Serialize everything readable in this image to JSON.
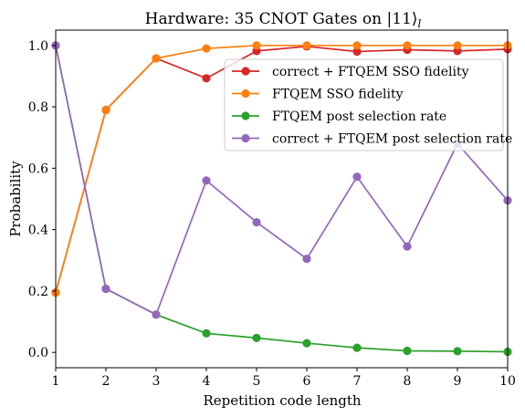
{
  "chart_data": {
    "type": "line",
    "title": "Hardware: 35 CNOT Gates on |11⟩",
    "title_subscript": "l",
    "xlabel": "Repetition code length",
    "ylabel": "Probability",
    "xlim": [
      1,
      10
    ],
    "ylim": [
      -0.05,
      1.05
    ],
    "x": [
      1,
      2,
      3,
      4,
      5,
      6,
      7,
      8,
      9,
      10
    ],
    "xticks": [
      "1",
      "2",
      "3",
      "4",
      "5",
      "6",
      "7",
      "8",
      "9",
      "10"
    ],
    "yticks": [
      "0.0",
      "0.2",
      "0.4",
      "0.6",
      "0.8",
      "1.0"
    ],
    "ytick_values": [
      0.0,
      0.2,
      0.4,
      0.6,
      0.8,
      1.0
    ],
    "grid": false,
    "legend_position": "upper-right",
    "series": [
      {
        "name": "correct + FTQEM SSO fidelity",
        "color": "#d62728",
        "values": [
          0.195,
          0.79,
          0.958,
          0.893,
          0.982,
          0.997,
          0.98,
          0.986,
          0.982,
          0.988
        ]
      },
      {
        "name": "FTQEM SSO fidelity",
        "color": "#ff7f0e",
        "values": [
          0.195,
          0.79,
          0.958,
          0.99,
          1.0,
          1.0,
          1.0,
          1.0,
          1.0,
          1.0
        ]
      },
      {
        "name": "FTQEM post selection rate",
        "color": "#2ca02c",
        "values": [
          1.0,
          0.207,
          0.123,
          0.062,
          0.047,
          0.03,
          0.015,
          0.005,
          0.004,
          0.002
        ]
      },
      {
        "name": "correct + FTQEM post selection rate",
        "color": "#9467bd",
        "values": [
          1.0,
          0.207,
          0.123,
          0.56,
          0.424,
          0.305,
          0.572,
          0.345,
          0.68,
          0.495
        ]
      }
    ]
  }
}
